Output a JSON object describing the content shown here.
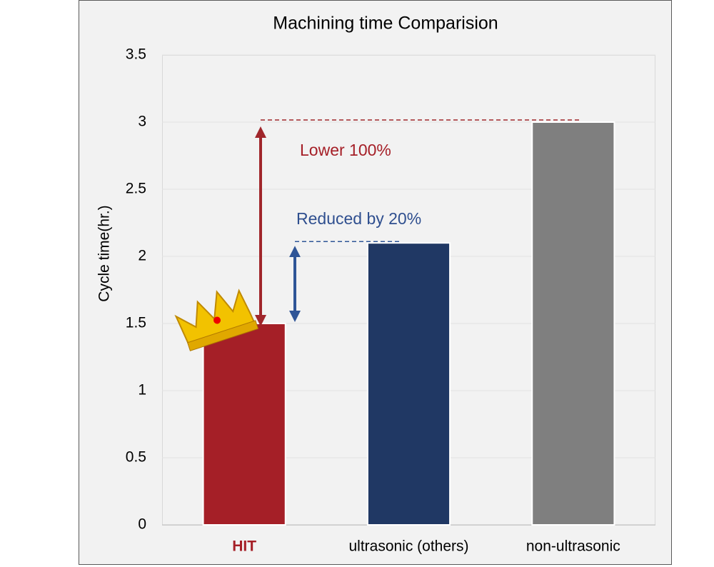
{
  "chart_data": {
    "type": "bar",
    "title": "Machining time Comparision",
    "y_label": "Cycle time(hr.)",
    "categories": [
      "HIT",
      "ultrasonic (others)",
      "non-ultrasonic"
    ],
    "values": [
      1.5,
      2.1,
      3
    ],
    "colors": [
      "#a51f27",
      "#203864",
      "#7f7f7f"
    ],
    "ylim": [
      0,
      3.5
    ],
    "yticks": [
      0,
      0.5,
      1,
      1.5,
      2,
      2.5,
      3,
      3.5
    ],
    "grid": true,
    "annotations": [
      "Lower 100%",
      "Reduced by 20%"
    ]
  }
}
